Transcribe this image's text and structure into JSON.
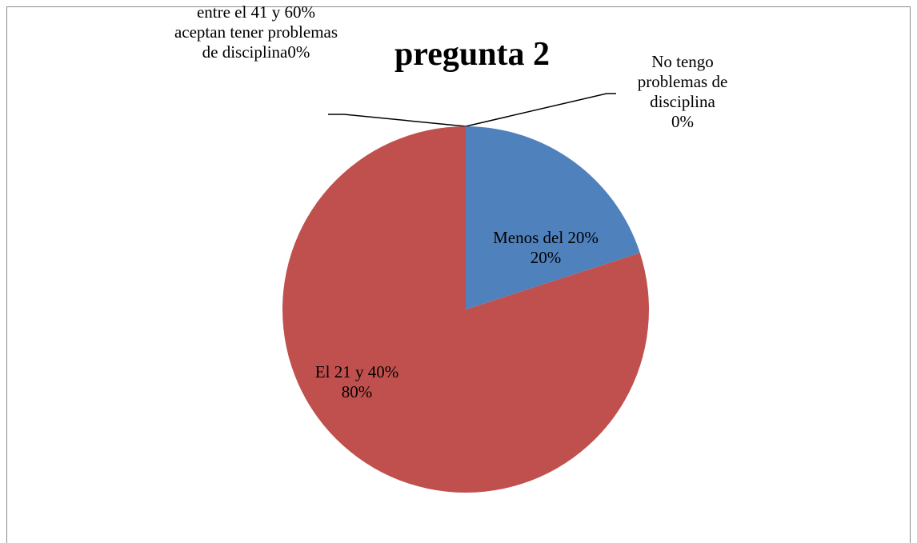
{
  "chart_data": {
    "type": "pie",
    "title": "pregunta 2",
    "categories": [
      "No tengo problemas de disciplina",
      "Menos del 20%",
      "El 21 y 40%",
      "entre el 41 y 60% aceptan tener problemas de disciplina"
    ],
    "values": [
      0,
      20,
      80,
      0
    ],
    "value_labels": [
      "0%",
      "20%",
      "80%",
      "0%"
    ],
    "colors": [
      "#8064a2",
      "#4f81bd",
      "#c0504d",
      "#9bbb59"
    ]
  }
}
